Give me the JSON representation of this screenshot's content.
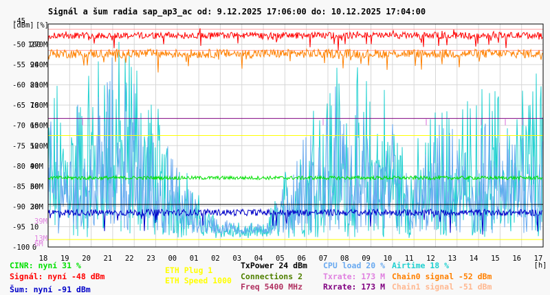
{
  "chart_data": {
    "type": "line",
    "title": "Signál a šum radia sap_ap3_ac od: 9.12.2025 17:06:00 do: 10.12.2025 17:04:00",
    "y_axes": {
      "dbm": {
        "unit": "[dBm]",
        "range": [
          -100,
          -45
        ],
        "ticks": [
          -45,
          -50,
          -55,
          -60,
          -65,
          -70,
          -75,
          -80,
          -85,
          -90,
          -95,
          -100
        ]
      },
      "percent": {
        "unit": "[%]",
        "range": [
          0,
          100
        ],
        "ticks": [
          100,
          90,
          80,
          70,
          60,
          50,
          40,
          30,
          20,
          10,
          0
        ]
      },
      "rate": {
        "range": [
          0,
          300
        ],
        "ticks": [
          "300M",
          "270M",
          "240M",
          "210M",
          "180M",
          "150M",
          "120M",
          "90M",
          "60M",
          "30M",
          "0M"
        ]
      },
      "freq_ticks": [
        "39M",
        "13M",
        "6M"
      ]
    },
    "x_axis": {
      "unit": "[h]",
      "ticks": [
        "18",
        "19",
        "20",
        "21",
        "22",
        "23",
        "00",
        "01",
        "02",
        "03",
        "04",
        "05",
        "06",
        "07",
        "08",
        "09",
        "10",
        "11",
        "12",
        "13",
        "14",
        "15",
        "16",
        "17"
      ]
    },
    "grid": true,
    "series": [
      {
        "name": "Signál",
        "color": "#ff0000",
        "approx_level_dbm": -48
      },
      {
        "name": "Chain0 signal",
        "color": "#ff8000",
        "approx_level_dbm": -52
      },
      {
        "name": "Šum",
        "color": "#0000c8",
        "approx_level_dbm": -91
      },
      {
        "name": "CINR",
        "color": "#00e000",
        "approx_level_percent": 31
      },
      {
        "name": "CPU load",
        "color": "#6aaaf0",
        "approx_level_percent": 20
      },
      {
        "name": "Airtime",
        "color": "#20d0d0",
        "approx_level_percent": 18
      },
      {
        "name": "Txrate",
        "color": "#e080e0",
        "approx_level_mbps": 173
      },
      {
        "name": "Rxrate",
        "color": "#800080",
        "approx_level_mbps": 173
      }
    ],
    "reference_lines": [
      {
        "color": "#800080",
        "level_mbps": 173
      },
      {
        "color": "#ffff00",
        "level_mbps": 150
      },
      {
        "color": "#ffff00",
        "level_mbps": 10
      },
      {
        "color": "#000000",
        "level_dbm": -89.5
      },
      {
        "color": "#ffa0a0",
        "level_dbm": -46.3
      },
      {
        "color": "#ffa0a0",
        "level_dbm": -51.5
      }
    ]
  },
  "legend": {
    "cinr": {
      "text": "CINR: nyní 31 %",
      "color": "#00e000"
    },
    "signal": {
      "text": "Signál: nyní -48 dBm",
      "color": "#ff0000"
    },
    "noise": {
      "text": "Šum: nyní -91 dBm",
      "color": "#0000c8"
    },
    "eth_plug": {
      "text": "ETH Plug 1",
      "color": "#ffff00"
    },
    "eth_speed": {
      "text": "ETH Speed 1000",
      "color": "#ffff00"
    },
    "txpower": {
      "text": "TxPower 24 dBm",
      "color": "#000000"
    },
    "connections": {
      "text": "Connections 2",
      "color": "#508000"
    },
    "freq": {
      "text": "Freq 5400 MHz",
      "color": "#b03060"
    },
    "cpu": {
      "text": "CPU load 20 %",
      "color": "#6aaaf0"
    },
    "txrate": {
      "text": "Txrate: 173 M",
      "color": "#e080e0"
    },
    "rxrate": {
      "text": "Rxrate: 173 M",
      "color": "#800080"
    },
    "airtime": {
      "text": "Airtime 18 %",
      "color": "#20d0d0"
    },
    "chain0": {
      "text": "Chain0 signal -52 dBm",
      "color": "#ff8000"
    },
    "chain1": {
      "text": "Chain1 signal -51 dBm",
      "color": "#ffb890"
    }
  }
}
